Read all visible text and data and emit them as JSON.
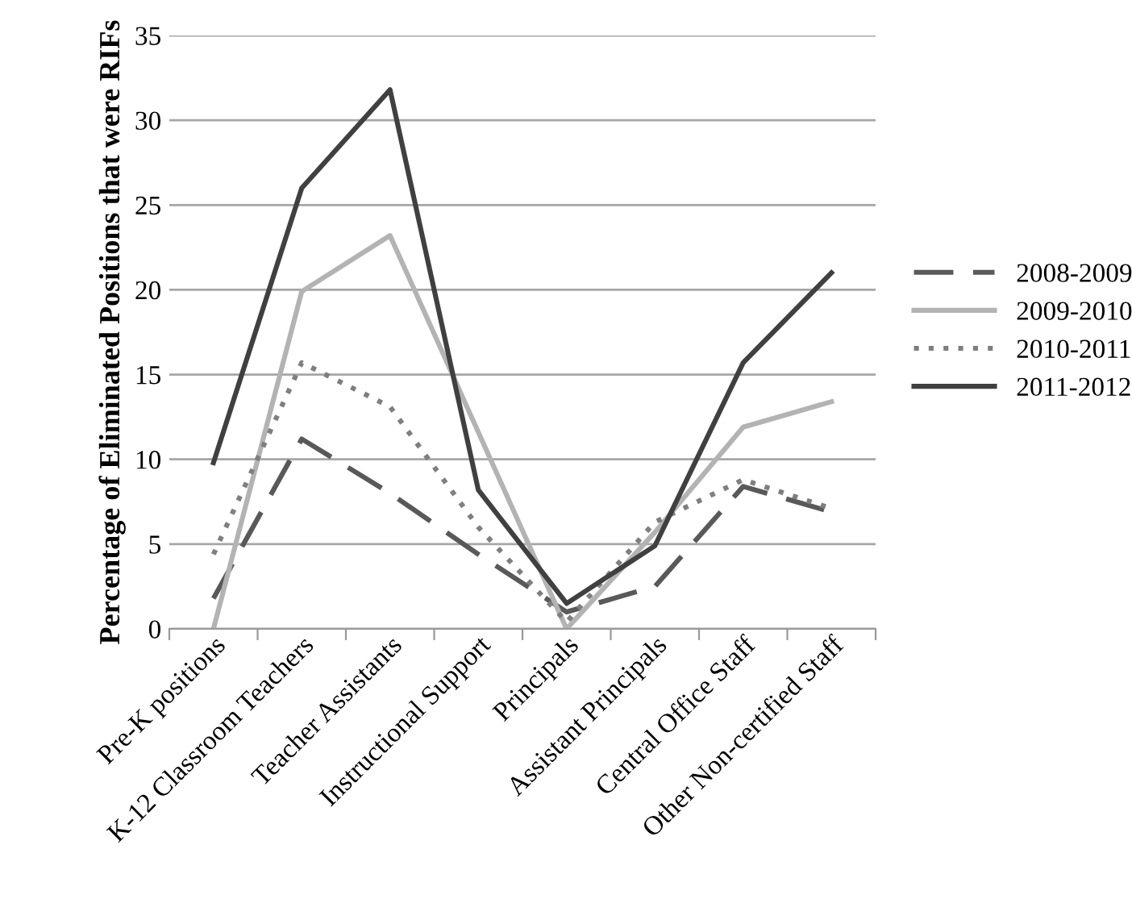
{
  "chart_data": {
    "type": "line",
    "ylabel": "Percentage of Eliminated Positions that were RIFs",
    "categories": [
      "Pre-K positions",
      "K-12 Classroom Teachers",
      "Teacher Assistants",
      "Instructional Support",
      "Principals",
      "Assistant Principals",
      "Central Office Staff",
      "Other Non-certified Staff"
    ],
    "series": [
      {
        "name": "2008-2009",
        "color": "#595959",
        "line_style": "dashed",
        "values": [
          1.8,
          11.2,
          8.0,
          4.4,
          1.0,
          2.5,
          8.4,
          6.9
        ]
      },
      {
        "name": "2009-2010",
        "color": "#b3b3b3",
        "line_style": "solid",
        "values": [
          0,
          19.9,
          23.2,
          11.6,
          0,
          5.7,
          11.9,
          13.4
        ]
      },
      {
        "name": "2010-2011",
        "color": "#7f7f7f",
        "line_style": "dotted",
        "values": [
          4.4,
          15.7,
          13.1,
          6.0,
          0.4,
          6.3,
          8.8,
          7.1
        ]
      },
      {
        "name": "2011-2012",
        "color": "#404040",
        "line_style": "solid",
        "values": [
          9.8,
          26.0,
          31.8,
          8.2,
          1.5,
          4.9,
          15.7,
          21.0
        ]
      }
    ],
    "ylim": [
      0,
      35
    ],
    "yticks": [
      0,
      5,
      10,
      15,
      20,
      25,
      30,
      35
    ],
    "grid": "y",
    "legend": "right",
    "marker": "none"
  }
}
